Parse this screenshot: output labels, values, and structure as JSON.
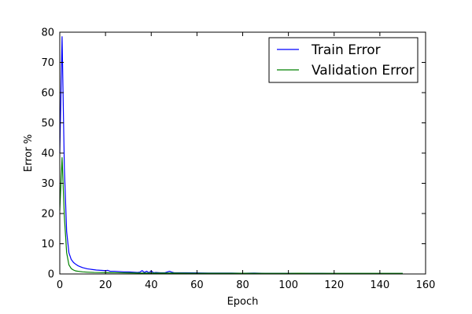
{
  "chart_data": {
    "type": "line",
    "title": "",
    "xlabel": "Epoch",
    "ylabel": "Error %",
    "xlim": [
      0,
      160
    ],
    "ylim": [
      0,
      80
    ],
    "xticks": [
      0,
      20,
      40,
      60,
      80,
      100,
      120,
      140,
      160
    ],
    "yticks": [
      0,
      10,
      20,
      30,
      40,
      50,
      60,
      70,
      80
    ],
    "grid": false,
    "legend_position": "top-right",
    "series": [
      {
        "name": "Train Error",
        "color": "#0000ff",
        "points": [
          [
            0,
            40
          ],
          [
            1,
            78.5
          ],
          [
            2,
            35
          ],
          [
            3,
            14
          ],
          [
            4,
            7
          ],
          [
            5,
            4.8
          ],
          [
            6,
            3.8
          ],
          [
            7,
            3.2
          ],
          [
            8,
            2.7
          ],
          [
            9,
            2.4
          ],
          [
            10,
            2.1
          ],
          [
            11,
            1.9
          ],
          [
            12,
            1.7
          ],
          [
            13,
            1.6
          ],
          [
            14,
            1.5
          ],
          [
            15,
            1.4
          ],
          [
            16,
            1.3
          ],
          [
            18,
            1.2
          ],
          [
            20,
            1.1
          ],
          [
            21,
            1.2
          ],
          [
            22,
            0.9
          ],
          [
            24,
            0.9
          ],
          [
            26,
            0.8
          ],
          [
            28,
            0.7
          ],
          [
            30,
            0.7
          ],
          [
            32,
            0.6
          ],
          [
            34,
            0.5
          ],
          [
            35,
            0.6
          ],
          [
            36,
            1.1
          ],
          [
            37,
            0.5
          ],
          [
            38,
            0.9
          ],
          [
            39,
            0.4
          ],
          [
            40,
            1.0
          ],
          [
            41,
            0.4
          ],
          [
            42,
            0.5
          ],
          [
            44,
            0.4
          ],
          [
            46,
            0.4
          ],
          [
            48,
            0.9
          ],
          [
            49,
            0.6
          ],
          [
            50,
            0.4
          ],
          [
            55,
            0.4
          ],
          [
            60,
            0.35
          ],
          [
            65,
            0.3
          ],
          [
            70,
            0.3
          ],
          [
            75,
            0.3
          ],
          [
            80,
            0.25
          ],
          [
            85,
            0.3
          ],
          [
            90,
            0.2
          ],
          [
            95,
            0.2
          ],
          [
            100,
            0.2
          ],
          [
            105,
            0.2
          ],
          [
            110,
            0.2
          ],
          [
            115,
            0.2
          ],
          [
            120,
            0.15
          ],
          [
            125,
            0.15
          ],
          [
            130,
            0.15
          ],
          [
            135,
            0.15
          ],
          [
            140,
            0.15
          ],
          [
            145,
            0.15
          ],
          [
            150,
            0.15
          ]
        ]
      },
      {
        "name": "Validation Error",
        "color": "#008000",
        "points": [
          [
            0,
            21
          ],
          [
            1,
            38.5
          ],
          [
            2,
            19
          ],
          [
            3,
            7
          ],
          [
            4,
            3
          ],
          [
            5,
            1.8
          ],
          [
            6,
            1.3
          ],
          [
            7,
            1.0
          ],
          [
            8,
            0.9
          ],
          [
            10,
            0.7
          ],
          [
            12,
            0.6
          ],
          [
            15,
            0.5
          ],
          [
            20,
            0.45
          ],
          [
            25,
            0.4
          ],
          [
            30,
            0.35
          ],
          [
            35,
            0.3
          ],
          [
            40,
            0.3
          ],
          [
            50,
            0.3
          ],
          [
            60,
            0.25
          ],
          [
            70,
            0.25
          ],
          [
            80,
            0.25
          ],
          [
            90,
            0.2
          ],
          [
            100,
            0.2
          ],
          [
            105,
            0.25
          ],
          [
            110,
            0.2
          ],
          [
            120,
            0.2
          ],
          [
            130,
            0.2
          ],
          [
            140,
            0.2
          ],
          [
            150,
            0.2
          ]
        ]
      }
    ]
  }
}
